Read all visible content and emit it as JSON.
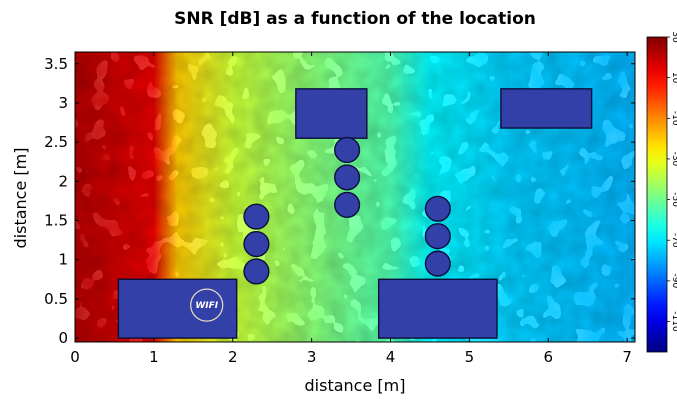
{
  "chart_data": {
    "type": "heatmap",
    "title": "SNR [dB] as a function of the location",
    "xlabel": "distance [m]",
    "ylabel": "distance [m]",
    "xlim": [
      0,
      7.1
    ],
    "ylim": [
      -0.05,
      3.65
    ],
    "x_ticks": [
      0,
      1,
      2,
      3,
      4,
      5,
      6,
      7
    ],
    "y_ticks": [
      0,
      0.5,
      1,
      1.5,
      2,
      2.5,
      3,
      3.5
    ],
    "x_tick_labels": [
      "0",
      "1",
      "2",
      "3",
      "4",
      "5",
      "6",
      "7"
    ],
    "y_tick_labels": [
      "0",
      "0.5",
      "1",
      "1.5",
      "2",
      "2.5",
      "3",
      "3.5"
    ],
    "colorbar": {
      "range": [
        -125,
        30
      ],
      "ticks": [
        30,
        10,
        -10,
        -30,
        -50,
        -70,
        -90,
        -110
      ],
      "tick_labels": [
        "30",
        "10",
        "-10",
        "-30",
        "-50",
        "-70",
        "-90",
        "-110"
      ],
      "colormap": "jet"
    },
    "snr_profile": {
      "x": [
        0,
        0.5,
        1.0,
        1.3,
        2.0,
        3.0,
        4.0,
        4.5,
        5.5,
        7.1
      ],
      "snr": [
        22,
        18,
        14,
        -20,
        -36,
        -46,
        -55,
        -68,
        -74,
        -78
      ]
    },
    "obstacles": {
      "rectangles": [
        {
          "x0": 0.55,
          "y0": 0.0,
          "x1": 2.05,
          "y1": 0.75
        },
        {
          "x0": 2.8,
          "y0": 2.55,
          "x1": 3.7,
          "y1": 3.18
        },
        {
          "x0": 3.85,
          "y0": 0.0,
          "x1": 5.35,
          "y1": 0.75
        },
        {
          "x0": 5.4,
          "y0": 2.68,
          "x1": 6.55,
          "y1": 3.18
        }
      ],
      "circles": [
        {
          "x": 2.3,
          "y": 1.55,
          "r": 0.16
        },
        {
          "x": 2.3,
          "y": 1.2,
          "r": 0.16
        },
        {
          "x": 2.3,
          "y": 0.85,
          "r": 0.16
        },
        {
          "x": 3.45,
          "y": 2.4,
          "r": 0.16
        },
        {
          "x": 3.45,
          "y": 2.05,
          "r": 0.16
        },
        {
          "x": 3.45,
          "y": 1.7,
          "r": 0.16
        },
        {
          "x": 4.6,
          "y": 1.65,
          "r": 0.16
        },
        {
          "x": 4.6,
          "y": 1.3,
          "r": 0.16
        },
        {
          "x": 4.6,
          "y": 0.95,
          "r": 0.16
        }
      ]
    },
    "wifi_source": {
      "x": 1.67,
      "y": 0.42,
      "label": "WIFI"
    }
  }
}
